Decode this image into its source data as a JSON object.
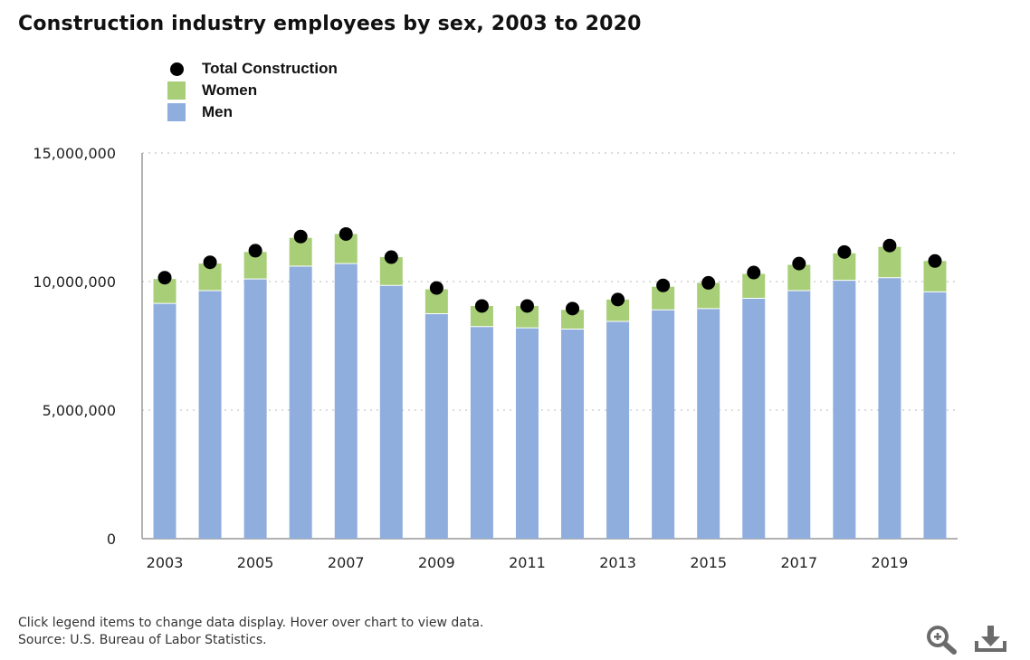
{
  "chart_data": {
    "type": "bar",
    "stacked": true,
    "title": "Construction industry employees by sex, 2003 to 2020",
    "categories": [
      "2003",
      "2004",
      "2005",
      "2006",
      "2007",
      "2008",
      "2009",
      "2010",
      "2011",
      "2012",
      "2013",
      "2014",
      "2015",
      "2016",
      "2017",
      "2018",
      "2019",
      "2020"
    ],
    "x_tick_labels": [
      "2003",
      "2005",
      "2007",
      "2009",
      "2011",
      "2013",
      "2015",
      "2017",
      "2019"
    ],
    "series": [
      {
        "name": "Men",
        "type": "bar",
        "color": "#8faedd",
        "values": [
          9150000,
          9650000,
          10100000,
          10600000,
          10700000,
          9850000,
          8750000,
          8250000,
          8200000,
          8150000,
          8450000,
          8900000,
          8950000,
          9350000,
          9650000,
          10050000,
          10150000,
          9600000
        ]
      },
      {
        "name": "Women",
        "type": "bar",
        "color": "#a8cf78",
        "values": [
          950000,
          1050000,
          1050000,
          1100000,
          1150000,
          1100000,
          950000,
          800000,
          850000,
          750000,
          850000,
          900000,
          1000000,
          950000,
          1000000,
          1050000,
          1200000,
          1200000
        ]
      },
      {
        "name": "Total Construction",
        "type": "scatter",
        "color": "#000000",
        "values": [
          10150000,
          10750000,
          11200000,
          11750000,
          11850000,
          10950000,
          9750000,
          9050000,
          9050000,
          8950000,
          9300000,
          9850000,
          9950000,
          10350000,
          10700000,
          11150000,
          11400000,
          10800000
        ]
      }
    ],
    "y_ticks": [
      0,
      5000000,
      10000000,
      15000000
    ],
    "y_tick_labels": [
      "0",
      "5,000,000",
      "10,000,000",
      "15,000,000"
    ],
    "ylim": [
      0,
      15000000
    ],
    "xlabel": "",
    "ylabel": "",
    "grid": true,
    "legend_position": "top-left"
  },
  "legend": [
    {
      "label": "Total Construction",
      "color": "#000000",
      "shape": "dot"
    },
    {
      "label": "Women",
      "color": "#a8cf78",
      "shape": "square"
    },
    {
      "label": "Men",
      "color": "#8faedd",
      "shape": "square"
    }
  ],
  "footer": {
    "hint": "Click legend items to change data display. Hover over chart to view data.",
    "source": "Source: U.S. Bureau of Labor Statistics."
  },
  "toolbar": {
    "zoom_icon": "zoom-in-icon",
    "download_icon": "download-icon"
  }
}
